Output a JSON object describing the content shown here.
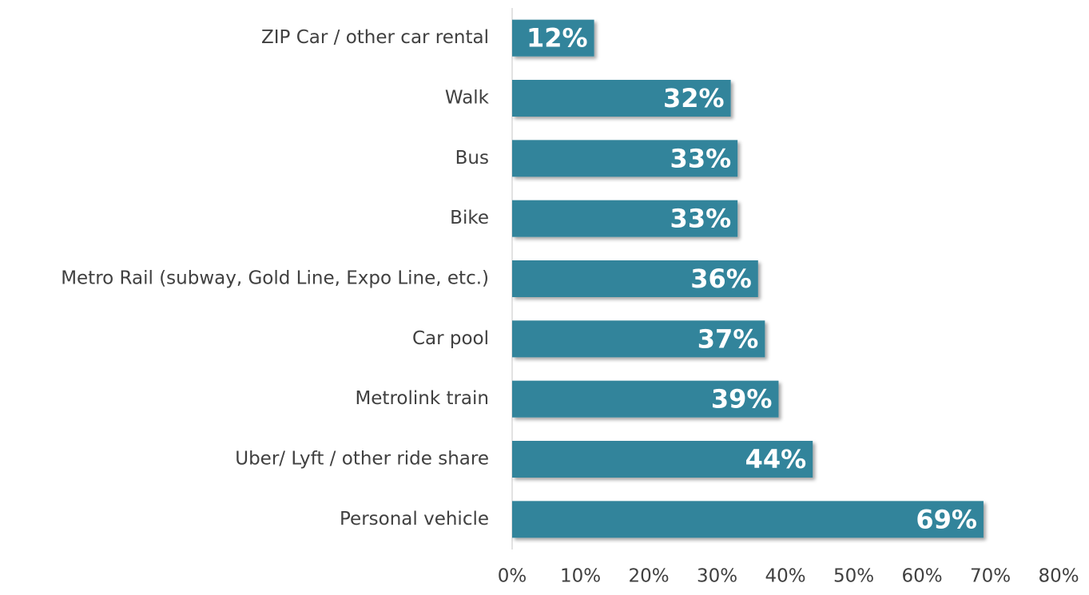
{
  "chart_data": {
    "type": "bar",
    "orientation": "horizontal",
    "categories": [
      "ZIP Car / other car rental",
      "Walk",
      "Bus",
      "Bike",
      "Metro Rail (subway, Gold Line, Expo Line, etc.)",
      "Car pool",
      "Metrolink train",
      "Uber/ Lyft / other ride share",
      "Personal vehicle"
    ],
    "values": [
      12,
      32,
      33,
      33,
      36,
      37,
      39,
      44,
      69
    ],
    "value_labels": [
      "12%",
      "32%",
      "33%",
      "33%",
      "36%",
      "37%",
      "39%",
      "44%",
      "69%"
    ],
    "color": "#31849b",
    "xlim": [
      0,
      80
    ],
    "xticks": [
      {
        "value": 0,
        "label": "0%"
      },
      {
        "value": 10,
        "label": "10%"
      },
      {
        "value": 20,
        "label": "20%"
      },
      {
        "value": 30,
        "label": "30%"
      },
      {
        "value": 40,
        "label": "40%"
      },
      {
        "value": 50,
        "label": "50%"
      },
      {
        "value": 60,
        "label": "60%"
      },
      {
        "value": 70,
        "label": "70%"
      },
      {
        "value": 80,
        "label": "80%"
      }
    ],
    "grid": false
  }
}
